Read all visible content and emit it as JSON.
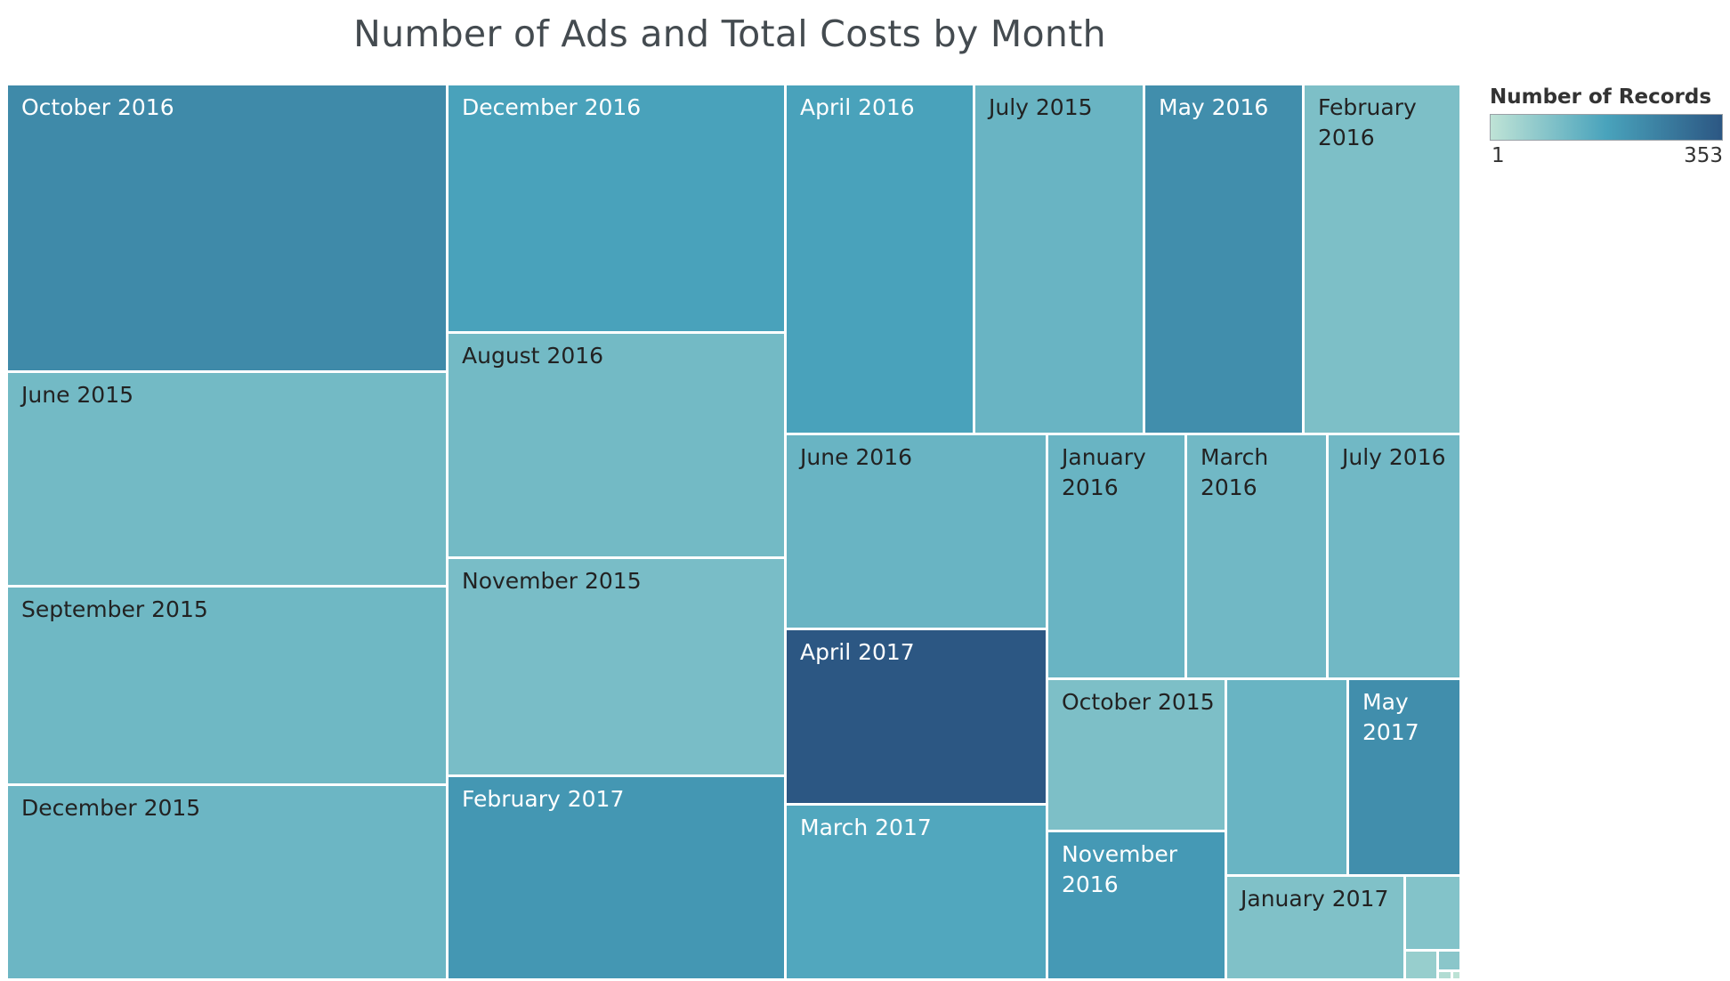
{
  "chart_data": {
    "type": "treemap",
    "title": "Number of Ads and Total Costs by Month",
    "legend": {
      "title": "Number of Records",
      "min": 1,
      "max": 353,
      "min_label": "1",
      "max_label": "353",
      "placement": "top-right",
      "color_low": "#bfe3d6",
      "color_mid": "#49a3bc",
      "color_high": "#2c5783"
    },
    "leaves": [
      {
        "label": "October 2016",
        "records": 235
      },
      {
        "label": "June 2015",
        "records": 115
      },
      {
        "label": "September 2015",
        "records": 120
      },
      {
        "label": "December 2015",
        "records": 125
      },
      {
        "label": "December 2016",
        "records": 180
      },
      {
        "label": "August 2016",
        "records": 115
      },
      {
        "label": "November 2015",
        "records": 105
      },
      {
        "label": "February 2017",
        "records": 205
      },
      {
        "label": "April 2016",
        "records": 180
      },
      {
        "label": "July 2015",
        "records": 130
      },
      {
        "label": "May 2016",
        "records": 225
      },
      {
        "label": "February 2016",
        "records": 100
      },
      {
        "label": "June 2016",
        "records": 130
      },
      {
        "label": "January 2016",
        "records": 130
      },
      {
        "label": "March 2016",
        "records": 118
      },
      {
        "label": "July 2016",
        "records": 118
      },
      {
        "label": "April 2017",
        "records": 353
      },
      {
        "label": "March 2017",
        "records": 165
      },
      {
        "label": "October 2015",
        "records": 100
      },
      {
        "label": "",
        "records": 130
      },
      {
        "label": "May 2017",
        "records": 225
      },
      {
        "label": "November 2016",
        "records": 200
      },
      {
        "label": "January 2017",
        "records": 95
      },
      {
        "label": "",
        "records": 90
      },
      {
        "label": "",
        "records": 60
      },
      {
        "label": "",
        "records": 80
      },
      {
        "label": "",
        "records": 20
      },
      {
        "label": "",
        "records": 5
      }
    ]
  }
}
